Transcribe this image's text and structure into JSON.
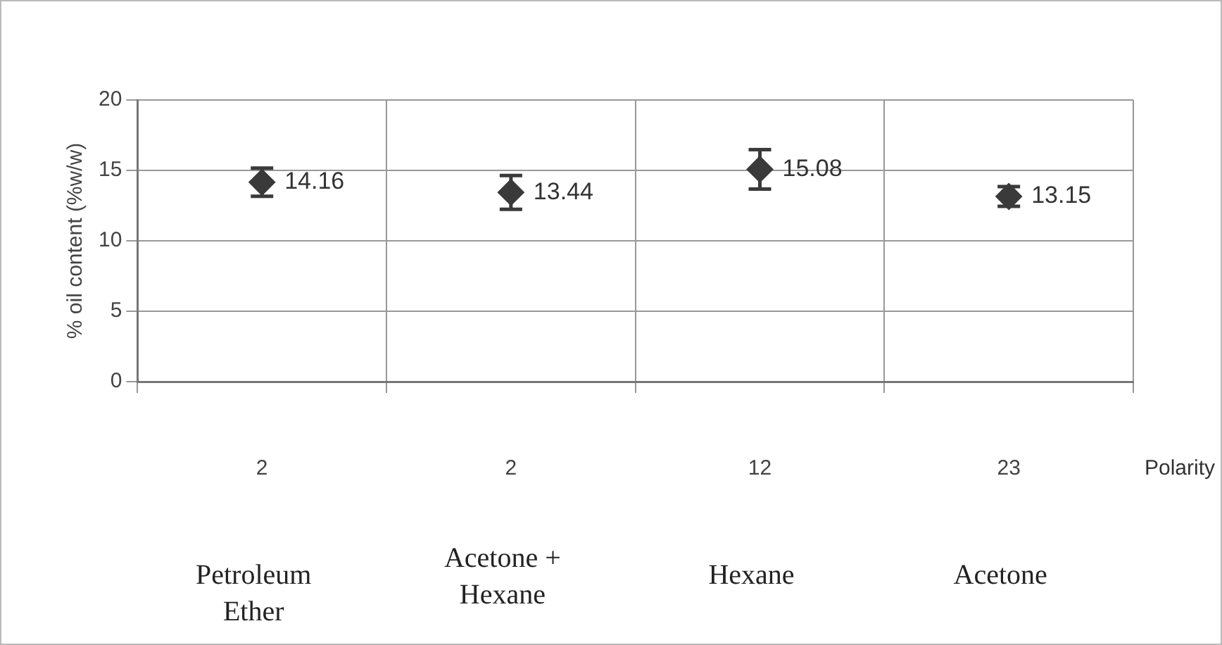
{
  "chart_data": {
    "type": "scatter",
    "categories": [
      "2",
      "2",
      "12",
      "23"
    ],
    "values": [
      14.16,
      13.44,
      15.08,
      13.15
    ],
    "errors": [
      1.0,
      1.2,
      1.4,
      0.7
    ],
    "color": "#3a3a3a",
    "marker": "diamond",
    "data_labels": true,
    "grid": true,
    "legend": false,
    "ylabel": "% oil content (%w/w)",
    "xlabel": "Polarity",
    "ylim": [
      0,
      20
    ],
    "yticks": [
      0,
      5,
      10,
      15,
      20
    ],
    "annotations": [
      "Petroleum Ether",
      "Acetone + Hexane",
      "Hexane",
      "Acetone"
    ]
  }
}
